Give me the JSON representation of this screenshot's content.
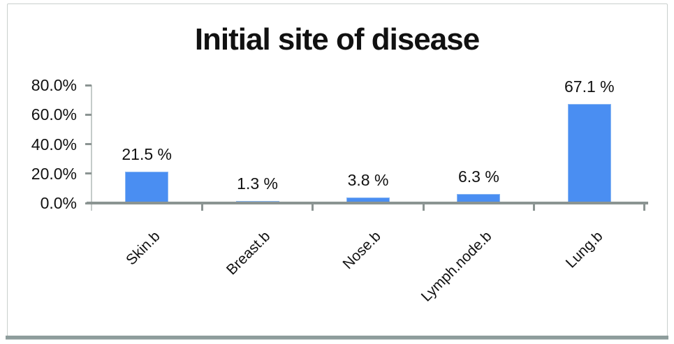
{
  "chart_data": {
    "type": "bar",
    "title": "Initial site of disease",
    "categories": [
      "Skin.b",
      "Breast.b",
      "Nose.b",
      "Lymph.node.b",
      "Lung.b"
    ],
    "values": [
      21.5,
      1.3,
      3.8,
      6.3,
      67.1
    ],
    "bar_labels": [
      "21.5 %",
      "1.3 %",
      "3.8 %",
      "6.3 %",
      "67.1 %"
    ],
    "xlabel": "",
    "ylabel": "",
    "y_axis": {
      "ticks": [
        "0.0%",
        "20.0%",
        "40.0%",
        "60.0%",
        "80.0%"
      ],
      "min": 0,
      "max": 80
    },
    "grid": false,
    "legend": "none",
    "x_label_rotation_deg": 45,
    "colors": {
      "bar": "#4a8ef2",
      "bar_border": "#8ab7f2",
      "axis_line": "#c5cbc9",
      "baseline": "#8b9492",
      "tick": "#8b9492",
      "text": "#111111",
      "frame_border": "#c9cfcd",
      "bottom_edge": "#8e9d9c"
    }
  }
}
